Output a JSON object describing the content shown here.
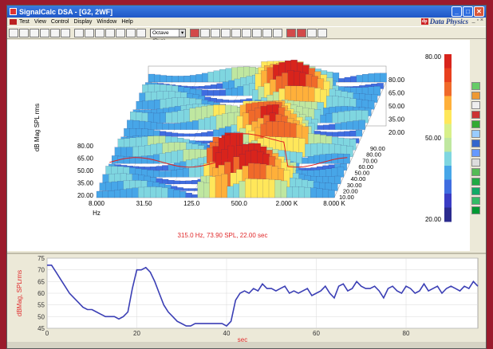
{
  "window": {
    "title": "SignalCalc DSA - [G2, 2WF]",
    "brand": "Data Physics",
    "minimize": "_",
    "maximize": "□",
    "close": "✕",
    "mdi_controls": "_ ▫ ×"
  },
  "menu": [
    "Test",
    "View",
    "Control",
    "Display",
    "Window",
    "Help"
  ],
  "toolbar": {
    "mode_select": "Octave (Run)"
  },
  "waterfall": {
    "ylabel": "dB Mag SPL rms",
    "xlabel": "Hz",
    "x_ticks": [
      "8.000",
      "31.50",
      "125.0",
      "500.0",
      "2.000 K",
      "8.000 K"
    ],
    "y_ticks": [
      "80.00",
      "65.00",
      "50.00",
      "35.00",
      "20.00"
    ],
    "back_z_ticks": [
      "80.00",
      "65.00",
      "50.00",
      "35.00",
      "20.00"
    ],
    "time_ticks": [
      "90.00",
      "80.00",
      "70.00",
      "60.00",
      "50.00",
      "40.00",
      "30.00",
      "20.00",
      "10.00"
    ],
    "cursor_readout": "315.0   Hz, 73.90   SPL, 22.00   sec",
    "colorbar_labels": {
      "top": "80.00",
      "mid": "50.00",
      "bottom": "20.00"
    }
  },
  "chart_data": {
    "type": "line",
    "xlabel": "sec",
    "ylabel": "dBMag, SPLrms",
    "xlim": [
      0,
      96
    ],
    "ylim": [
      45,
      75
    ],
    "x_ticks": [
      0,
      20,
      40,
      60,
      80
    ],
    "y_ticks": [
      45,
      50,
      55,
      60,
      65,
      70,
      75
    ],
    "x": [
      0,
      1,
      2,
      3,
      4,
      5,
      6,
      7,
      8,
      9,
      10,
      11,
      12,
      13,
      14,
      15,
      16,
      17,
      18,
      19,
      20,
      21,
      22,
      23,
      24,
      25,
      26,
      27,
      28,
      29,
      30,
      31,
      32,
      33,
      34,
      35,
      36,
      37,
      38,
      39,
      40,
      41,
      42,
      43,
      44,
      45,
      46,
      47,
      48,
      49,
      50,
      51,
      52,
      53,
      54,
      55,
      56,
      57,
      58,
      59,
      60,
      61,
      62,
      63,
      64,
      65,
      66,
      67,
      68,
      69,
      70,
      71,
      72,
      73,
      74,
      75,
      76,
      77,
      78,
      79,
      80,
      81,
      82,
      83,
      84,
      85,
      86,
      87,
      88,
      89,
      90,
      91,
      92,
      93,
      94,
      95,
      96
    ],
    "y": [
      72,
      72,
      69,
      66,
      63,
      60,
      58,
      56,
      54,
      53,
      53,
      52,
      51,
      50,
      50,
      50,
      49,
      50,
      52,
      62,
      70,
      70,
      71,
      69,
      65,
      60,
      55,
      52,
      50,
      48,
      47,
      46,
      46,
      47,
      47,
      47,
      47,
      47,
      47,
      47,
      46,
      48,
      57,
      60,
      61,
      60,
      62,
      61,
      64,
      62,
      62,
      61,
      62,
      63,
      60,
      61,
      60,
      61,
      62,
      59,
      60,
      61,
      63,
      60,
      58,
      63,
      64,
      61,
      62,
      65,
      63,
      62,
      62,
      63,
      61,
      58,
      62,
      63,
      61,
      60,
      63,
      62,
      60,
      61,
      64,
      61,
      62,
      63,
      60,
      62,
      63,
      62,
      61,
      63,
      62,
      65,
      63
    ]
  }
}
